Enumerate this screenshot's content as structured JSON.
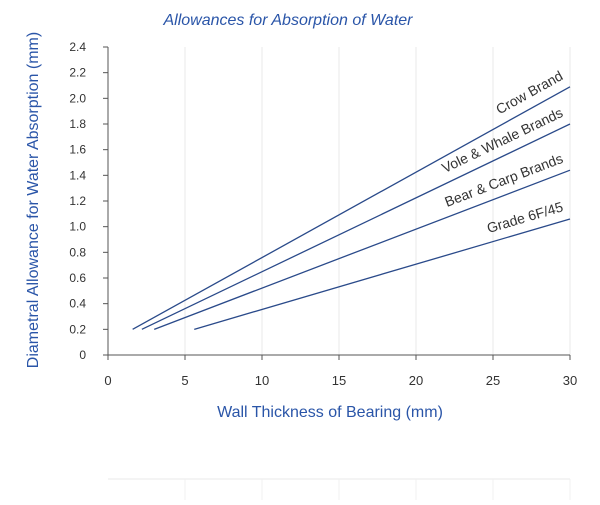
{
  "chart_data": {
    "type": "line",
    "title": "Allowances for Absorption of Water",
    "xlabel": "Wall Thickness of Bearing (mm)",
    "ylabel": "Diametral Allowance for Water Absorption (mm)",
    "xlim": [
      0,
      30
    ],
    "ylim": [
      0,
      2.4
    ],
    "xticks": [
      0,
      5,
      10,
      15,
      20,
      25,
      30
    ],
    "xtick_labels": [
      "0",
      "5",
      "10",
      "15",
      "20",
      "25",
      "30"
    ],
    "yticks": [
      0,
      0.2,
      0.4,
      0.6,
      0.8,
      1.0,
      1.2,
      1.4,
      1.6,
      1.8,
      2.0,
      2.2,
      2.4
    ],
    "ytick_labels": [
      "0",
      "0.2",
      "0.4",
      "0.6",
      "0.8",
      "1.0",
      "1.2",
      "1.4",
      "1.6",
      "1.8",
      "2.0",
      "2.2",
      "2.4"
    ],
    "grid": "vertical",
    "series": [
      {
        "name": "Crow Brand",
        "x": [
          1.6,
          30
        ],
        "y": [
          0.2,
          2.09
        ]
      },
      {
        "name": "Vole & Whale Brands",
        "x": [
          2.2,
          30
        ],
        "y": [
          0.2,
          1.8
        ]
      },
      {
        "name": "Bear & Carp Brands",
        "x": [
          3.0,
          30
        ],
        "y": [
          0.2,
          1.44
        ]
      },
      {
        "name": "Grade 6F/45",
        "x": [
          5.6,
          30
        ],
        "y": [
          0.2,
          1.06
        ]
      }
    ],
    "colors": {
      "line": "#2a4a8a",
      "title": "#2a55a8",
      "axis_text": "#2a55a8",
      "tick_text": "#333333",
      "grid": "#e8e8e8",
      "axis": "#555555"
    }
  }
}
